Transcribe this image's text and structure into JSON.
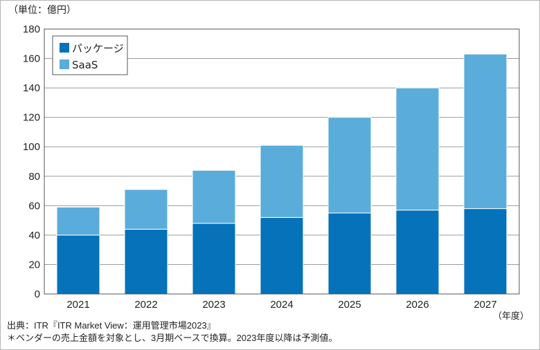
{
  "chart_data": {
    "type": "bar",
    "stacked": true,
    "categories": [
      "2021",
      "2022",
      "2023",
      "2024",
      "2025",
      "2026",
      "2027"
    ],
    "series": [
      {
        "name": "パッケージ",
        "values": [
          40,
          44,
          48,
          52,
          55,
          57,
          58
        ],
        "color": "#0572BA"
      },
      {
        "name": "SaaS",
        "values": [
          19,
          27,
          36,
          49,
          65,
          83,
          105
        ],
        "color": "#5AACDA"
      }
    ],
    "ylim": [
      0,
      180
    ],
    "yticks": [
      0,
      20,
      40,
      60,
      80,
      100,
      120,
      140,
      160,
      180
    ],
    "ylabel": "（単位：億円）",
    "xlabel": "（年度）",
    "grid": true,
    "legend_position": "top-left"
  },
  "footnotes": {
    "source": "出典：ITR『ITR Market View：運用管理市場2023』",
    "note": "＊ベンダーの売上金額を対象とし、3月期ベースで換算。2023年度以降は予測値。"
  }
}
